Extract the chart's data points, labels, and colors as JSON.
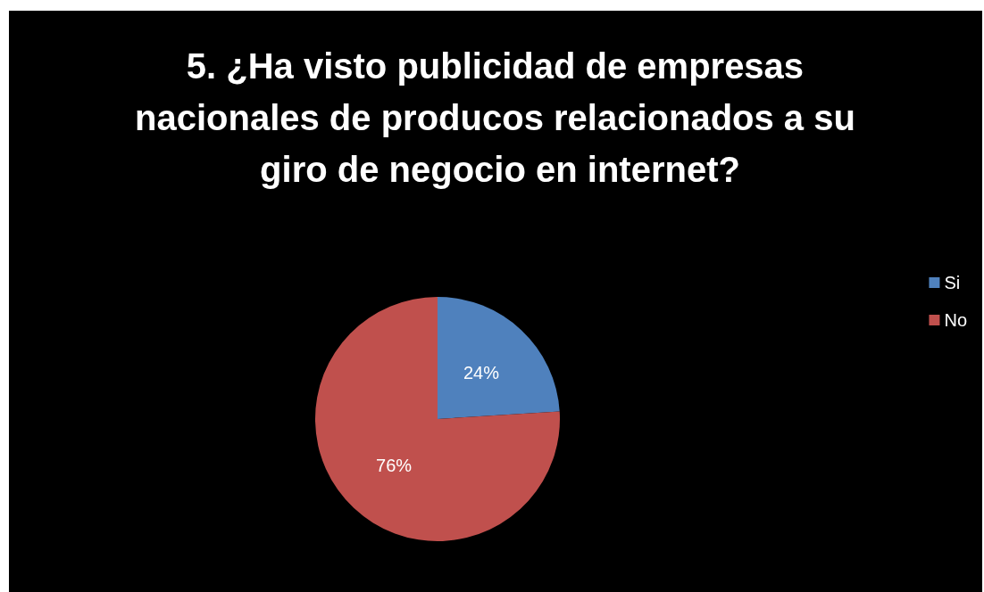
{
  "chart_data": {
    "type": "pie",
    "title": "5. ¿Ha visto publicidad de empresas nacionales de producos relacionados a su giro de negocio en internet?",
    "categories": [
      "Si",
      "No"
    ],
    "values": [
      24,
      76
    ],
    "colors": [
      "#4f81bd",
      "#c0504d"
    ],
    "value_labels": [
      "24%",
      "76%"
    ],
    "legend": "right"
  }
}
